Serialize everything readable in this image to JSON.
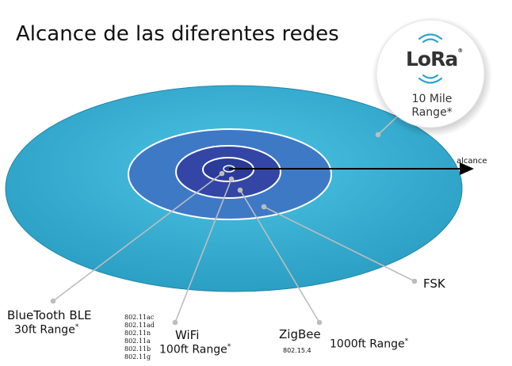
{
  "title": "Alcance de las diferentes redes",
  "colors": {
    "outer_ellipse": "#36AFD1",
    "fsk_ring": "#3F79C7",
    "wifi_ring": "#3448A8",
    "ble_ring": "#2A3A96",
    "leader_line": "#BDBDBD",
    "arrow": "#000000"
  },
  "lora": {
    "logo_text": "LoRa",
    "logo_mark": "®",
    "range_line1": "10 Mile",
    "range_line2": "Range*"
  },
  "arrow_label": "alcance",
  "fsk": {
    "name": "FSK"
  },
  "bluetooth": {
    "name": "BlueTooth BLE",
    "range": "30ft Range"
  },
  "wifi": {
    "name": "WiFi",
    "range": "100ft Range",
    "standards": [
      "802.11ac",
      "802.11ad",
      "802.11n",
      "802.11a",
      "802.11b",
      "802.11g"
    ]
  },
  "zigbee": {
    "name": "ZigBee",
    "standard": "802.15.4",
    "range": "1000ft Range"
  },
  "footnote_mark": "*"
}
